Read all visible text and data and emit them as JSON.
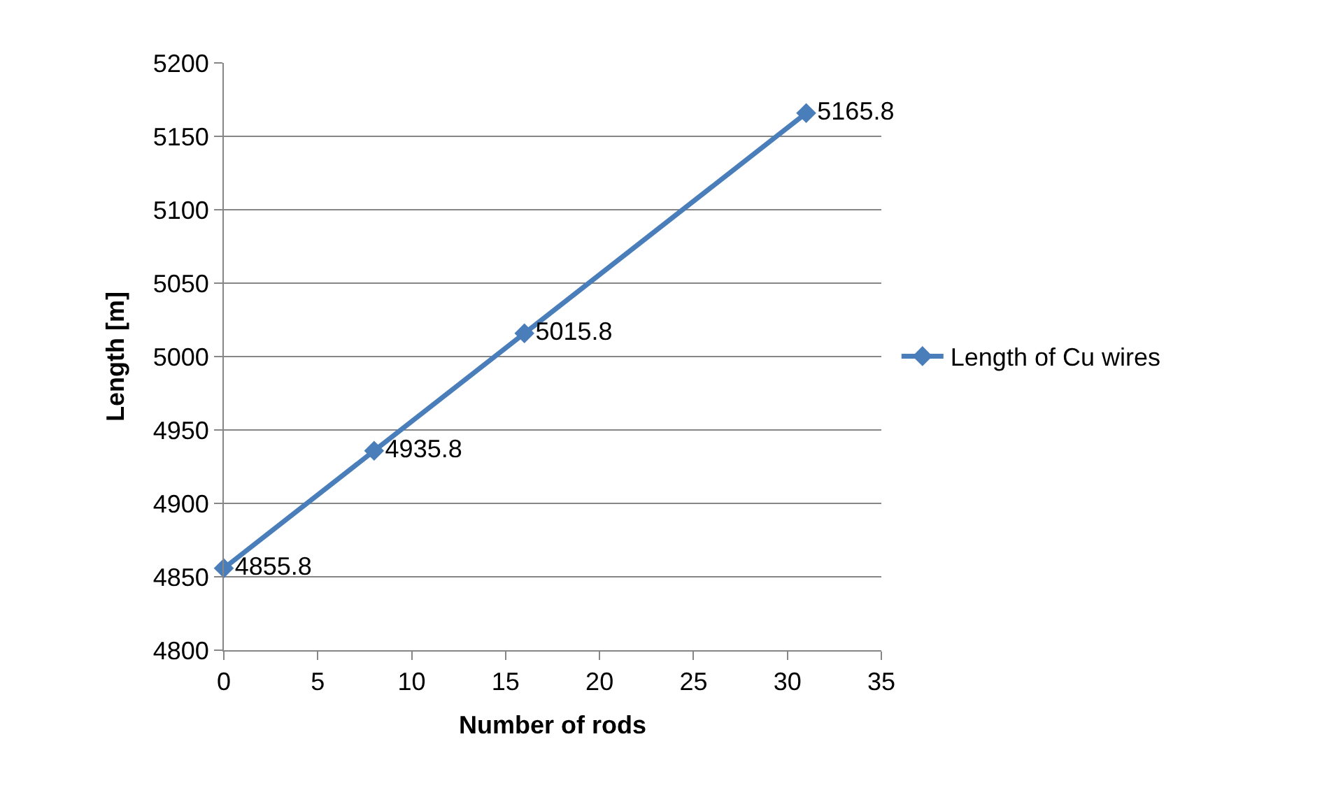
{
  "chart_data": {
    "type": "line",
    "xlabel": "Number of rods",
    "ylabel": "Length [m]",
    "x": [
      0,
      8,
      16,
      31
    ],
    "series": [
      {
        "name": "Length of Cu wires",
        "color": "#4a7ebb",
        "values": [
          4855.8,
          4935.8,
          5015.8,
          5165.8
        ]
      }
    ],
    "xlim": [
      0,
      35
    ],
    "xticks": [
      0,
      5,
      10,
      15,
      20,
      25,
      30,
      35
    ],
    "ylim": [
      4800,
      5200
    ],
    "yticks": [
      4800,
      4850,
      4900,
      4950,
      5000,
      5050,
      5100,
      5150,
      5200
    ],
    "grid": "y",
    "legend": "right",
    "marker": "diamond",
    "line_style": "solid",
    "data_labels": true
  }
}
